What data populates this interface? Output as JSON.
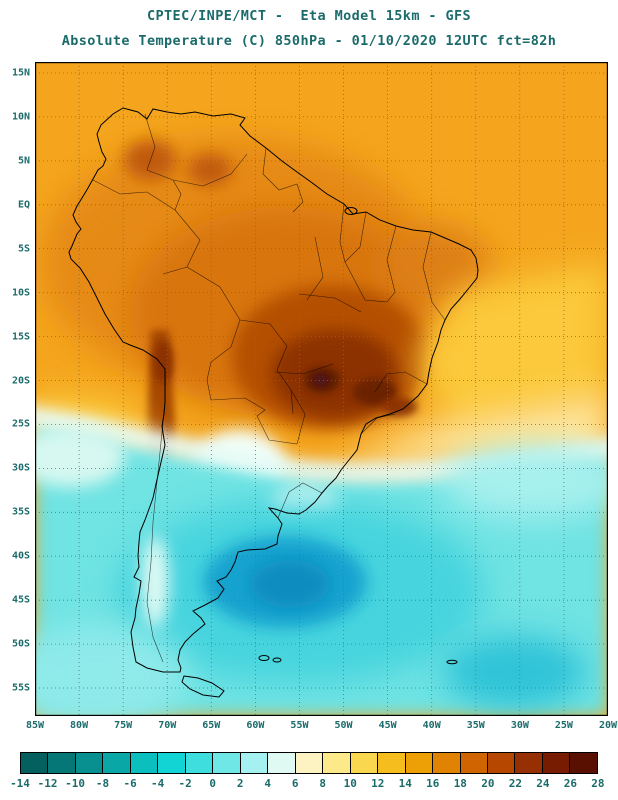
{
  "header": {
    "title_line1": "CPTEC/INPE/MCT -  Eta Model 15km - GFS",
    "title_line2": "Absolute Temperature (C) 850hPa - 01/10/2020 12UTC fct=82h"
  },
  "map": {
    "lat_ticks": [
      "15N",
      "10N",
      "5N",
      "EQ",
      "5S",
      "10S",
      "15S",
      "20S",
      "25S",
      "30S",
      "35S",
      "40S",
      "45S",
      "50S",
      "55S"
    ],
    "lon_ticks": [
      "85W",
      "80W",
      "75W",
      "70W",
      "65W",
      "60W",
      "55W",
      "50W",
      "45W",
      "40W",
      "35W",
      "30W",
      "25W",
      "20W"
    ]
  },
  "colorbar": {
    "tick_labels": [
      "-14",
      "-12",
      "-10",
      "-8",
      "-6",
      "-4",
      "-2",
      "0",
      "2",
      "4",
      "6",
      "8",
      "10",
      "12",
      "14",
      "16",
      "18",
      "20",
      "22",
      "24",
      "26",
      "28"
    ],
    "cell_colors": [
      "#045f5f",
      "#067777",
      "#088f8f",
      "#0aa7a7",
      "#0cbfbf",
      "#12d4d4",
      "#3fdede",
      "#6fe7e7",
      "#a5f0f0",
      "#dffaf2",
      "#fdf3c2",
      "#fce98a",
      "#f9d74f",
      "#f5bd1d",
      "#eda006",
      "#e18302",
      "#cf6401",
      "#b54701",
      "#962f01",
      "#771c01",
      "#591001"
    ]
  },
  "chart_data": {
    "type": "heatmap",
    "variable": "Absolute Temperature",
    "units": "C",
    "level": "850hPa",
    "model": "Eta Model 15km - GFS",
    "source": "CPTEC/INPE/MCT",
    "run": "01/10/2020 12UTC",
    "forecast": "fct=82h",
    "value_range": [
      -14,
      28
    ],
    "lat_range": [
      "15N",
      "55S"
    ],
    "lon_range": [
      "85W",
      "20W"
    ]
  }
}
